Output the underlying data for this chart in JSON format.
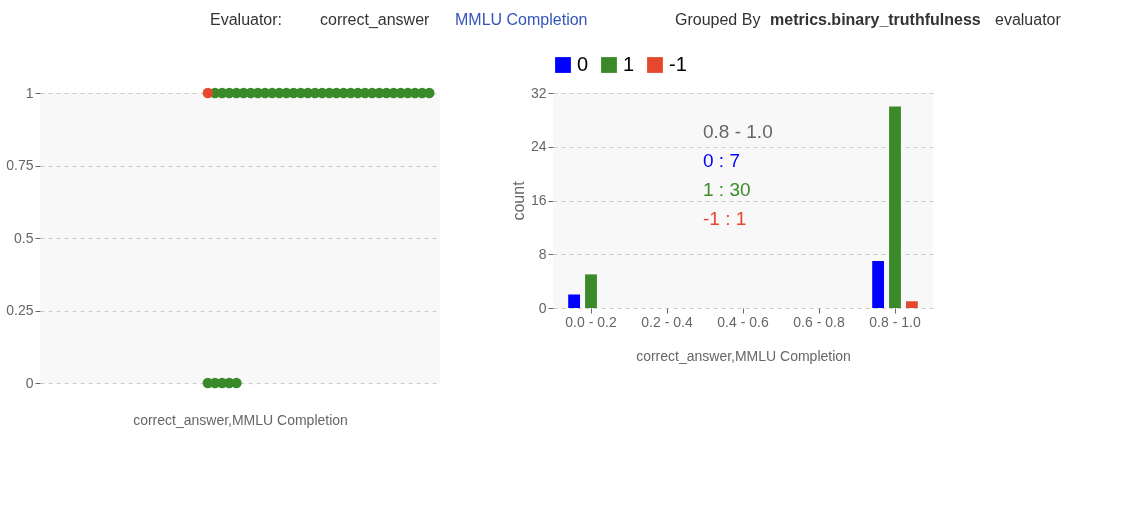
{
  "chart_data": [
    {
      "type": "scatter",
      "xlabel": "correct_answer,MMLU Completion",
      "annotations": [
        "Evaluator:",
        "correct_answer",
        "MMLU Completion",
        "Grouped By",
        "metrics.binary_truthfulness",
        "evaluator"
      ],
      "categories": [
        null,
        null,
        null,
        null,
        null,
        null,
        null,
        null,
        null,
        null,
        null,
        null,
        null,
        null,
        null,
        null,
        null,
        null,
        null,
        null,
        null,
        null,
        null,
        null,
        null,
        null,
        null,
        null,
        null,
        null,
        null,
        null,
        null,
        null,
        null,
        null,
        null,
        null,
        null,
        null,
        null,
        null,
        null,
        null,
        null,
        null,
        null,
        null,
        null,
        null,
        null,
        null,
        null,
        null,
        null,
        null
      ],
      "series": [
        {
          "color": "#3a8a2a",
          "values": [
            null,
            null,
            null,
            null,
            null,
            null,
            null,
            null,
            null,
            null,
            null,
            null,
            null,
            null,
            null,
            null,
            null,
            null,
            null,
            null,
            null,
            null,
            null,
            null,
            1,
            1,
            1,
            1,
            1,
            1,
            1,
            1,
            1,
            1,
            1,
            1,
            1,
            1,
            1,
            1,
            1,
            1,
            1,
            1,
            1,
            1,
            1,
            1,
            1,
            1,
            1,
            1,
            1,
            1,
            1,
            null
          ]
        },
        {
          "color": "#3a8a2a",
          "values": [
            null,
            null,
            null,
            null,
            null,
            null,
            null,
            null,
            null,
            null,
            null,
            null,
            null,
            null,
            null,
            null,
            null,
            null,
            null,
            null,
            null,
            null,
            null,
            0,
            0,
            0,
            0,
            0,
            null,
            null,
            null,
            null,
            null,
            null,
            null,
            null,
            null,
            null,
            null,
            null,
            null,
            null,
            null,
            null,
            null,
            null,
            null,
            null,
            null,
            null,
            null,
            null,
            null,
            null,
            null,
            null
          ]
        },
        {
          "color": "#e5482c",
          "values": [
            null,
            null,
            null,
            null,
            null,
            null,
            null,
            null,
            null,
            null,
            null,
            null,
            null,
            null,
            null,
            null,
            null,
            null,
            null,
            null,
            null,
            null,
            null,
            1,
            null,
            null,
            null,
            null,
            null,
            null,
            null,
            null,
            null,
            null,
            null,
            null,
            null,
            null,
            null,
            null,
            null,
            null,
            null,
            null,
            null,
            null,
            null,
            null,
            null,
            null,
            null,
            null,
            null,
            null,
            null,
            null
          ]
        }
      ],
      "ylim": [
        0,
        1
      ],
      "yticks": [
        0,
        0.25,
        0.5,
        0.75,
        1
      ],
      "grid": "y",
      "marker": "circle",
      "tick_labels": "y",
      "legend": false
    },
    {
      "type": "bar",
      "xlabel": "correct_answer,MMLU Completion",
      "ylabel": "count",
      "annotations": [
        "0.8 - 1.0",
        "0 : 7",
        "1 : 30",
        "-1 : 1"
      ],
      "categories": [
        "0.0 - 0.2",
        "0.2 - 0.4",
        "0.4 - 0.6",
        "0.6 - 0.8",
        "0.8 - 1.0"
      ],
      "series": [
        {
          "name": "0",
          "color": "#0000ff",
          "values": [
            2,
            0,
            0,
            0,
            7
          ]
        },
        {
          "name": "1",
          "color": "#3a8a2a",
          "values": [
            5,
            0,
            0,
            0,
            30
          ]
        },
        {
          "name": "-1",
          "color": "#e5482c",
          "values": [
            0,
            0,
            0,
            0,
            1
          ]
        }
      ],
      "ylim": [
        0,
        32
      ],
      "yticks": [
        0,
        8,
        16,
        24,
        32
      ],
      "grid": "y",
      "legend": "top"
    }
  ]
}
